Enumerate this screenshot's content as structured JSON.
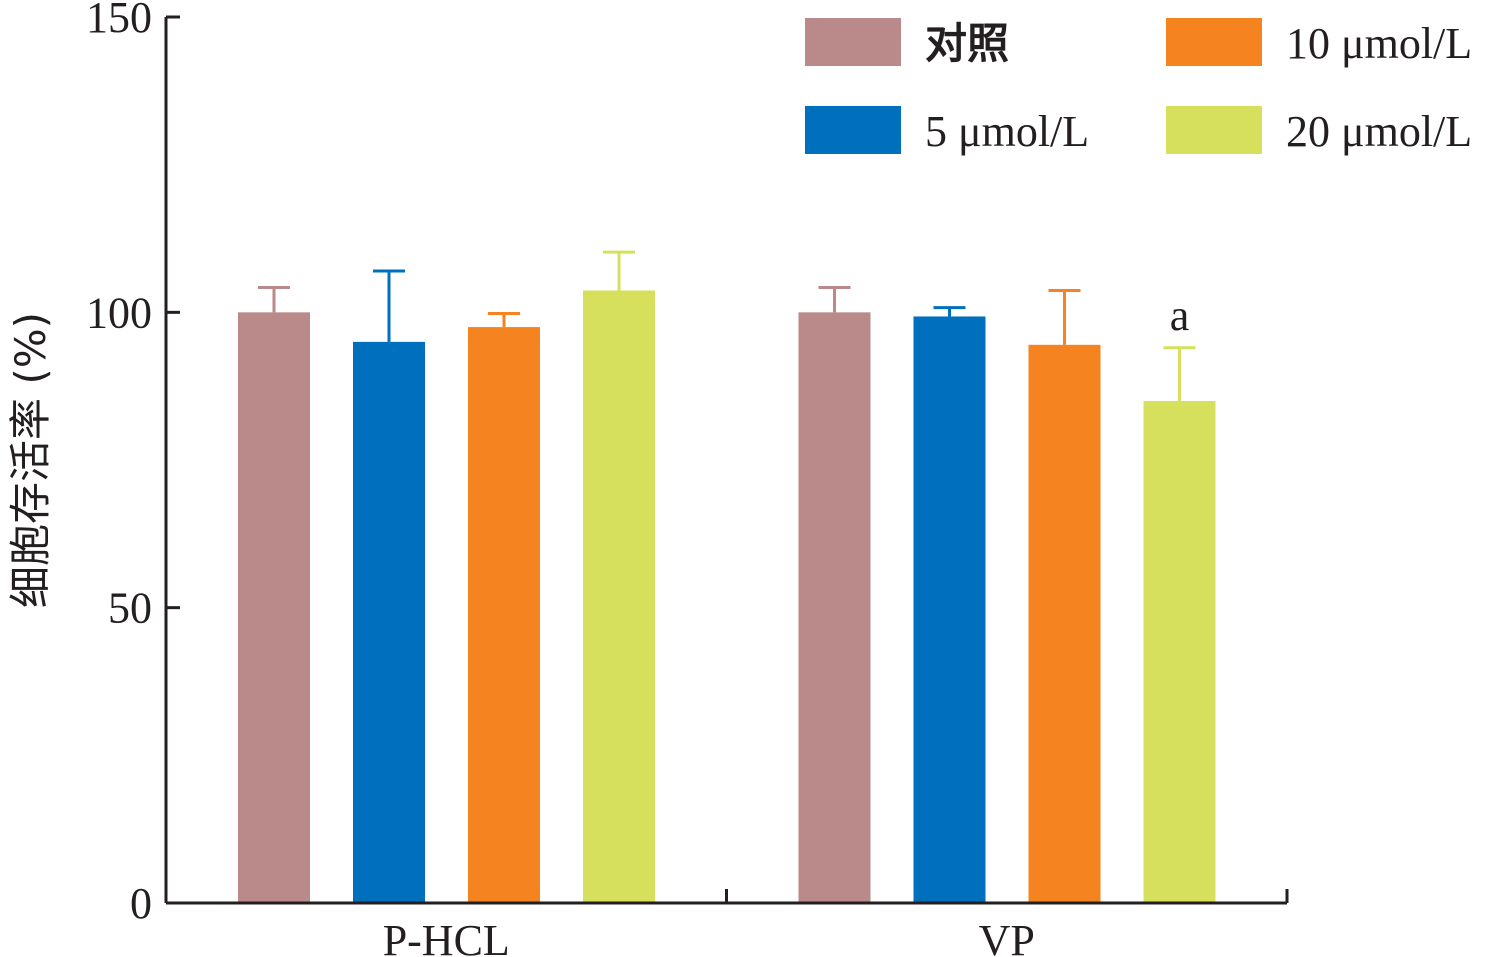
{
  "chart_data": {
    "type": "bar",
    "categories": [
      "P-HCL",
      "VP"
    ],
    "ylabel": "细胞存活率 (%)",
    "ylim": [
      0,
      150
    ],
    "yticks": [
      0,
      50,
      100,
      150
    ],
    "grid": false,
    "legend_position": "top-right",
    "series": [
      {
        "name": "对照",
        "color": "#b98a89",
        "values": [
          100,
          100
        ],
        "errors": [
          4.2,
          4.2
        ]
      },
      {
        "name": "5 μmol/L",
        "color": "#006fbd",
        "values": [
          95,
          99.3
        ],
        "errors": [
          12,
          1.5
        ]
      },
      {
        "name": "10 μmol/L",
        "color": "#f48320",
        "values": [
          97.5,
          94.5
        ],
        "errors": [
          2.3,
          9.2
        ]
      },
      {
        "name": "20 μmol/L",
        "color": "#d6e05c",
        "values": [
          103.7,
          85
        ],
        "errors": [
          6.5,
          9
        ]
      }
    ],
    "annotations": [
      {
        "category": "VP",
        "series": "20 μmol/L",
        "text": "a"
      }
    ]
  }
}
